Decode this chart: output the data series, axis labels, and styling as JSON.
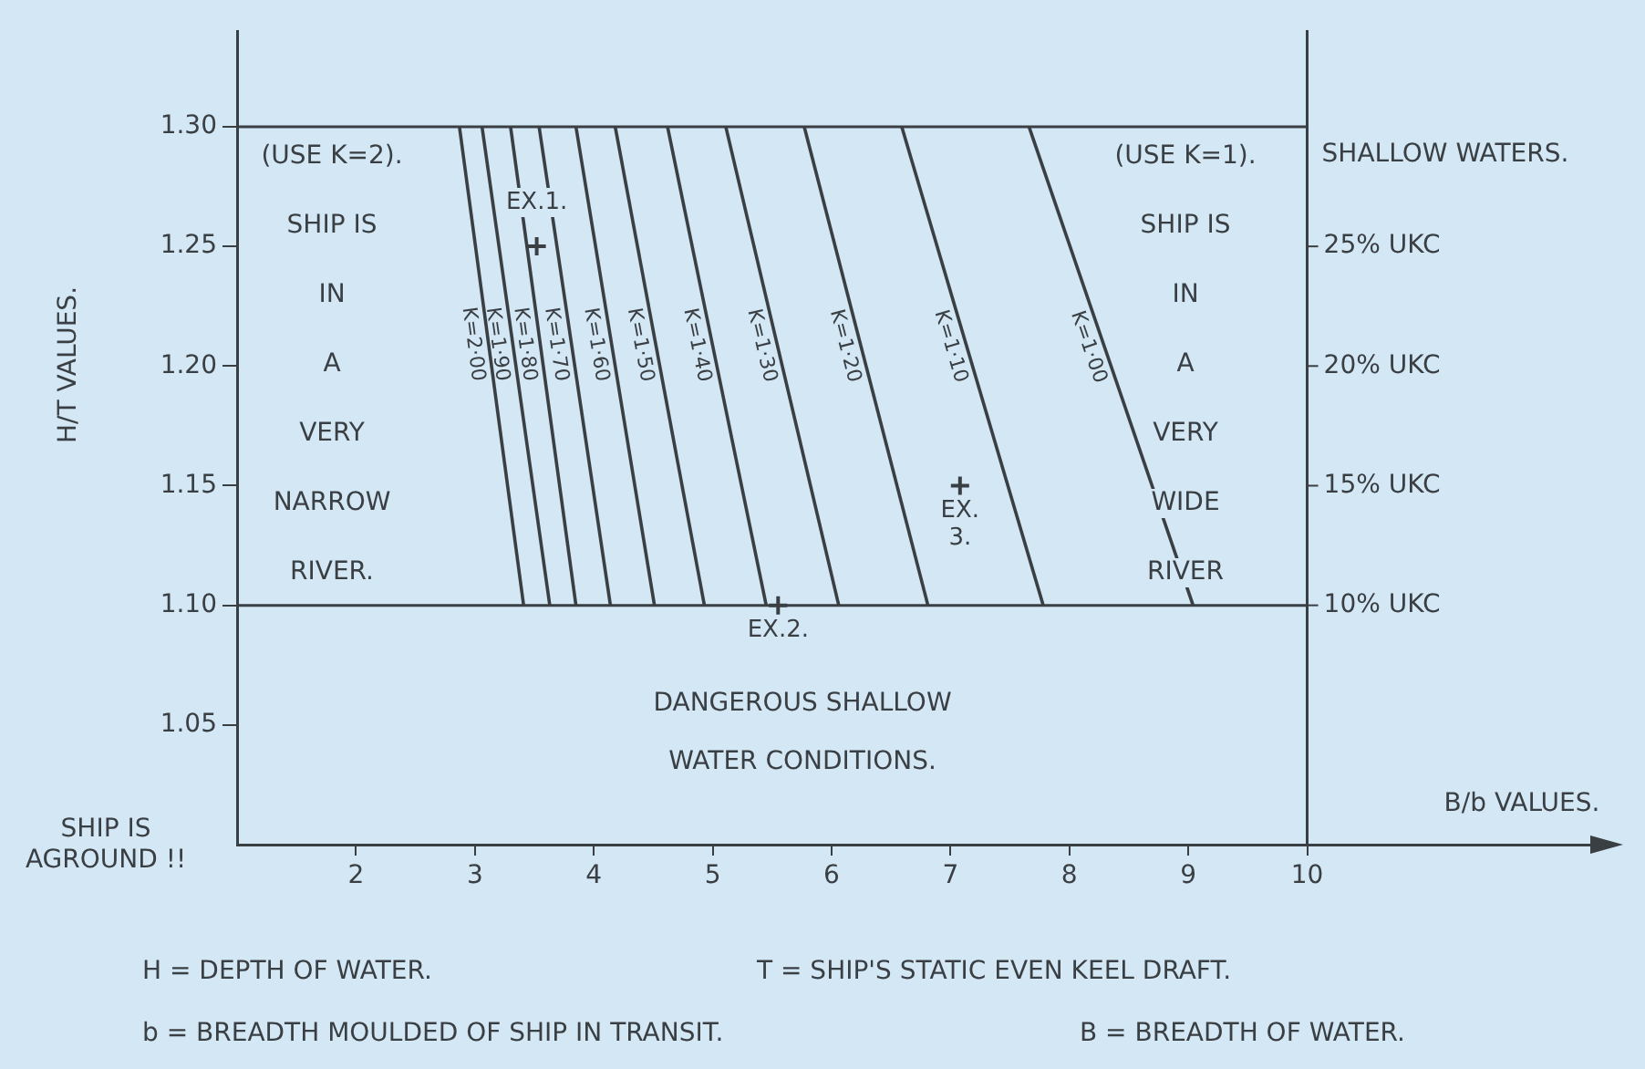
{
  "chart_data": {
    "type": "line",
    "xlabel": "B/b VALUES.",
    "ylabel": "H/T VALUES.",
    "y2label": "SHALLOW WATERS.",
    "xlim": [
      1,
      12.58
    ],
    "xticks": [
      2,
      3,
      4,
      5,
      6,
      7,
      8,
      9,
      10
    ],
    "ylim": [
      1.0,
      1.34
    ],
    "yticks": [
      {
        "value": 1.05,
        "label": "1.05"
      },
      {
        "value": 1.1,
        "label": "1.10"
      },
      {
        "value": 1.15,
        "label": "1.15"
      },
      {
        "value": 1.2,
        "label": "1.20"
      },
      {
        "value": 1.25,
        "label": "1.25"
      },
      {
        "value": 1.3,
        "label": "1.30"
      }
    ],
    "y2lim": [
      0,
      34
    ],
    "y2ticks": [
      {
        "value": 10,
        "label": "10% UKC"
      },
      {
        "value": 15,
        "label": "15% UKC"
      },
      {
        "value": 20,
        "label": "20% UKC"
      },
      {
        "value": 25,
        "label": "25% UKC"
      }
    ],
    "grid": false,
    "legend": false,
    "marker": "none",
    "line_style": "solid",
    "ref_lines": [
      {
        "axis": "y",
        "value": 1.1,
        "color": "#3a3f44"
      },
      {
        "axis": "y",
        "value": 1.3,
        "color": "#3a3f44"
      }
    ],
    "series": [
      {
        "name": "K=2·00",
        "color": "#3a3f44",
        "x": [
          2.87,
          3.41
        ],
        "values": [
          1.3,
          1.1
        ]
      },
      {
        "name": "K=1·90",
        "color": "#3a3f44",
        "x": [
          3.06,
          3.63
        ],
        "values": [
          1.3,
          1.1
        ]
      },
      {
        "name": "K=1·80",
        "color": "#3a3f44",
        "x": [
          3.3,
          3.85
        ],
        "values": [
          1.3,
          1.1
        ]
      },
      {
        "name": "K=1·70",
        "color": "#3a3f44",
        "x": [
          3.54,
          4.14
        ],
        "values": [
          1.3,
          1.1
        ]
      },
      {
        "name": "K=1·60",
        "color": "#3a3f44",
        "x": [
          3.85,
          4.51
        ],
        "values": [
          1.3,
          1.1
        ]
      },
      {
        "name": "K=1·50",
        "color": "#3a3f44",
        "x": [
          4.18,
          4.93
        ],
        "values": [
          1.3,
          1.1
        ]
      },
      {
        "name": "K=1·40",
        "color": "#3a3f44",
        "x": [
          4.62,
          5.45
        ],
        "values": [
          1.3,
          1.1
        ]
      },
      {
        "name": "K=1·30",
        "color": "#3a3f44",
        "x": [
          5.11,
          6.06
        ],
        "values": [
          1.3,
          1.1
        ]
      },
      {
        "name": "K=1·20",
        "color": "#3a3f44",
        "x": [
          5.77,
          6.81
        ],
        "values": [
          1.3,
          1.1
        ]
      },
      {
        "name": "K=1·10",
        "color": "#3a3f44",
        "x": [
          6.59,
          7.78
        ],
        "values": [
          1.3,
          1.1
        ]
      },
      {
        "name": "K=1·00",
        "color": "#3a3f44",
        "x": [
          7.66,
          9.04
        ],
        "values": [
          1.3,
          1.1
        ]
      },
      {
        "type": "scatter",
        "marker": "cross",
        "color": "#3a3f44",
        "x": [
          3.52,
          5.55,
          7.08
        ],
        "values": [
          1.25,
          1.1,
          1.15
        ]
      }
    ],
    "annotations": [
      "(USE K=2).\nSHIP IS\nIN\nA\nVERY\nNARROW\nRIVER.",
      "(USE K=1).\nSHIP IS\nIN\nA\nVERY\nWIDE\nRIVER",
      "SHIP IS\nAGROUND !!",
      "DANGEROUS SHALLOW\nWATER CONDITIONS.",
      "H = DEPTH OF WATER.",
      "T = SHIP'S STATIC EVEN KEEL DRAFT.",
      "b = BREADTH MOULDED OF SHIP IN TRANSIT.",
      "B = BREADTH OF WATER.",
      {
        "text": "EX.1.",
        "x": 3.52,
        "y": 1.25
      },
      {
        "text": "EX.2.",
        "x": 5.55,
        "y": 1.1
      },
      {
        "text": "EX.\n3.",
        "x": 7.08,
        "y": 1.15
      }
    ]
  }
}
